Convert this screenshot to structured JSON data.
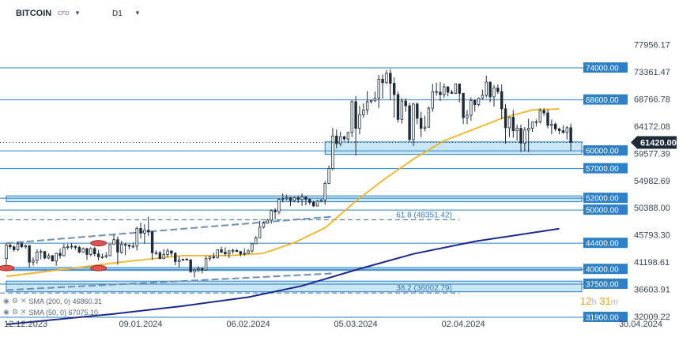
{
  "header": {
    "symbol": "BITCOIN",
    "symbol_sub": "CFD",
    "timeframe": "D1"
  },
  "timer": {
    "hours": "12",
    "h_unit": "h",
    "minutes": "31",
    "m_unit": "m"
  },
  "legend": [
    {
      "text": "SMA (200, 0) 46860.31",
      "color": "#1b2a8a"
    },
    {
      "text": "SMA (50, 0) 67075.10",
      "color": "#f0b429"
    }
  ],
  "colors": {
    "up": "#ffffff",
    "down": "#1f2a37",
    "level_line": "#2e7fc4",
    "zone_fill": "#bfe3f5",
    "sma200": "#1b2a8a",
    "sma50": "#f0b429",
    "price_tag": "#1f2a37",
    "marker": "#e05252"
  },
  "chart_data": {
    "type": "candlestick",
    "instrument": "BITCOIN",
    "timeframe": "D1",
    "ylim": [
      31900,
      80400
    ],
    "y_ticks": [
      77956.17,
      73361.47,
      68766.78,
      64172.08,
      59577.39,
      54982.69,
      50388.0,
      45793.3,
      41198.61,
      36603.91,
      32009.22
    ],
    "y_tick_labels": [
      "77956.17",
      "73361.47",
      "68766.78",
      "64172.08",
      "59577.39",
      "54982.69",
      "50388.00",
      "45793.30",
      "41198.61",
      "36603.91",
      "32009.22"
    ],
    "x_ticks": [
      {
        "date": "2023-12-12",
        "label": "12.12.2023"
      },
      {
        "date": "2024-01-09",
        "label": "09.01.2024"
      },
      {
        "date": "2024-02-06",
        "label": "06.02.2024"
      },
      {
        "date": "2024-03-05",
        "label": "05.03.2024"
      },
      {
        "date": "2024-04-02",
        "label": "02.04.2024"
      },
      {
        "date": "2024-04-30",
        "label": "30.04.2024"
      }
    ],
    "x_start": "2023-12-05",
    "x_end": "2024-05-01",
    "current_price": {
      "value": 61420.0,
      "label": "61420.00"
    },
    "levels": [
      {
        "value": 74000,
        "label": "74000.00"
      },
      {
        "value": 68600,
        "label": "68600.00"
      },
      {
        "value": 60000,
        "label": "60000.00"
      },
      {
        "value": 57000,
        "label": "57000.00"
      },
      {
        "value": 52000,
        "label": "52000.00"
      },
      {
        "value": 50000,
        "label": "50000.00"
      },
      {
        "value": 44400,
        "label": "44400.00"
      },
      {
        "value": 40000,
        "label": "40000.00"
      },
      {
        "value": 37500,
        "label": "37500.00"
      },
      {
        "value": 31900,
        "label": "31900.00"
      }
    ],
    "zones": [
      {
        "from_date": "2024-02-26",
        "to_date": "2024-04-30",
        "low": 59400,
        "high": 61500
      },
      {
        "from_date": "2023-12-05",
        "to_date": "2024-04-30",
        "low": 51400,
        "high": 52400
      },
      {
        "from_date": "2023-12-05",
        "to_date": "2024-04-30",
        "low": 39800,
        "high": 40300
      },
      {
        "from_date": "2023-12-05",
        "to_date": "2024-04-30",
        "low": 36200,
        "high": 38000
      }
    ],
    "fibonacci": [
      {
        "value": 48351.42,
        "label": "61.8 (48351.42)",
        "from_date": "2023-12-05",
        "to_date": "2024-04-01"
      },
      {
        "value": 36002.79,
        "label": "38.2 (36002.79)",
        "from_date": "2023-12-05",
        "to_date": "2024-04-01"
      }
    ],
    "trendlines": [
      {
        "from": [
          "2023-12-05",
          44400
        ],
        "to": [
          "2024-02-28",
          48900
        ],
        "dashed": true
      },
      {
        "from": [
          "2023-12-05",
          36500
        ],
        "to": [
          "2024-02-28",
          39300
        ],
        "dashed": true
      }
    ],
    "markers": [
      {
        "date": "2023-12-29",
        "value": 44400
      },
      {
        "date": "2023-12-29",
        "value": 40200
      },
      {
        "date": "2023-12-05",
        "value": 40200
      }
    ],
    "sma50": [
      [
        "2023-12-05",
        38800
      ],
      [
        "2023-12-20",
        40000
      ],
      [
        "2024-01-05",
        41300
      ],
      [
        "2024-01-20",
        42300
      ],
      [
        "2024-02-01",
        42300
      ],
      [
        "2024-02-10",
        42700
      ],
      [
        "2024-02-18",
        44500
      ],
      [
        "2024-02-26",
        47000
      ],
      [
        "2024-03-05",
        51500
      ],
      [
        "2024-03-12",
        55000
      ],
      [
        "2024-03-20",
        58600
      ],
      [
        "2024-03-28",
        61700
      ],
      [
        "2024-04-05",
        63700
      ],
      [
        "2024-04-12",
        65500
      ],
      [
        "2024-04-20",
        66900
      ],
      [
        "2024-04-27",
        67075
      ]
    ],
    "sma200": [
      [
        "2023-12-05",
        30700
      ],
      [
        "2024-01-01",
        32400
      ],
      [
        "2024-01-20",
        33800
      ],
      [
        "2024-02-06",
        35300
      ],
      [
        "2024-02-20",
        37200
      ],
      [
        "2024-03-05",
        39900
      ],
      [
        "2024-03-20",
        42600
      ],
      [
        "2024-04-05",
        44700
      ],
      [
        "2024-04-27",
        46860
      ]
    ],
    "candles": [
      [
        "2023-12-05",
        41800,
        44400,
        40600,
        44100
      ],
      [
        "2023-12-06",
        44100,
        44300,
        43400,
        43800
      ],
      [
        "2023-12-07",
        43800,
        44000,
        43000,
        43300
      ],
      [
        "2023-12-08",
        43300,
        44600,
        43100,
        44300
      ],
      [
        "2023-12-09",
        44300,
        44500,
        43600,
        43800
      ],
      [
        "2023-12-10",
        43800,
        44200,
        43500,
        44000
      ],
      [
        "2023-12-11",
        44000,
        44000,
        40300,
        41200
      ],
      [
        "2023-12-12",
        41200,
        42000,
        40600,
        41500
      ],
      [
        "2023-12-13",
        41500,
        43400,
        40900,
        42900
      ],
      [
        "2023-12-14",
        42900,
        43400,
        41700,
        43000
      ],
      [
        "2023-12-15",
        43000,
        43100,
        41700,
        41900
      ],
      [
        "2023-12-16",
        41900,
        42700,
        41700,
        42300
      ],
      [
        "2023-12-17",
        42300,
        42400,
        41300,
        41400
      ],
      [
        "2023-12-18",
        41400,
        42800,
        40600,
        42700
      ],
      [
        "2023-12-19",
        42700,
        43500,
        41800,
        42300
      ],
      [
        "2023-12-20",
        42300,
        44300,
        42200,
        43700
      ],
      [
        "2023-12-21",
        43700,
        44300,
        43300,
        43800
      ],
      [
        "2023-12-22",
        43800,
        44400,
        43400,
        43900
      ],
      [
        "2023-12-23",
        43900,
        44000,
        43300,
        43700
      ],
      [
        "2023-12-24",
        43700,
        44000,
        42700,
        42900
      ],
      [
        "2023-12-25",
        42900,
        43700,
        42800,
        43500
      ],
      [
        "2023-12-26",
        43500,
        43600,
        41600,
        42500
      ],
      [
        "2023-12-27",
        42500,
        43700,
        42200,
        43500
      ],
      [
        "2023-12-28",
        43500,
        43800,
        42200,
        42600
      ],
      [
        "2023-12-29",
        42600,
        43300,
        41500,
        42100
      ],
      [
        "2023-12-30",
        42100,
        42600,
        41800,
        42100
      ],
      [
        "2023-12-31",
        42100,
        42900,
        41900,
        42300
      ],
      [
        "2024-01-01",
        42300,
        44200,
        42200,
        44200
      ],
      [
        "2024-01-02",
        44200,
        45900,
        44200,
        45000
      ],
      [
        "2024-01-03",
        45000,
        45500,
        40800,
        42900
      ],
      [
        "2024-01-04",
        42900,
        44800,
        42600,
        44200
      ],
      [
        "2024-01-05",
        44200,
        44500,
        42400,
        44100
      ],
      [
        "2024-01-06",
        44100,
        44200,
        43400,
        43900
      ],
      [
        "2024-01-07",
        43900,
        44500,
        43600,
        43900
      ],
      [
        "2024-01-08",
        43900,
        47200,
        43200,
        46900
      ],
      [
        "2024-01-09",
        46900,
        47900,
        45200,
        46100
      ],
      [
        "2024-01-10",
        46100,
        47600,
        44300,
        46600
      ],
      [
        "2024-01-11",
        46600,
        48900,
        45600,
        46300
      ],
      [
        "2024-01-12",
        46300,
        46500,
        41600,
        42800
      ],
      [
        "2024-01-13",
        42800,
        43200,
        42400,
        42800
      ],
      [
        "2024-01-14",
        42800,
        43100,
        41700,
        41800
      ],
      [
        "2024-01-15",
        41800,
        43400,
        41700,
        42500
      ],
      [
        "2024-01-16",
        42500,
        43500,
        42000,
        43100
      ],
      [
        "2024-01-17",
        43100,
        43200,
        42200,
        42700
      ],
      [
        "2024-01-18",
        42700,
        42900,
        40700,
        41300
      ],
      [
        "2024-01-19",
        41300,
        42200,
        40300,
        41600
      ],
      [
        "2024-01-20",
        41600,
        41800,
        41400,
        41700
      ],
      [
        "2024-01-21",
        41700,
        41900,
        41500,
        41600
      ],
      [
        "2024-01-22",
        41600,
        41700,
        39400,
        39600
      ],
      [
        "2024-01-23",
        39600,
        40100,
        38600,
        39900
      ],
      [
        "2024-01-24",
        39900,
        40500,
        39500,
        40100
      ],
      [
        "2024-01-25",
        40100,
        40300,
        39300,
        39900
      ],
      [
        "2024-01-26",
        39900,
        42200,
        39800,
        41800
      ],
      [
        "2024-01-27",
        41800,
        42200,
        41400,
        42100
      ],
      [
        "2024-01-28",
        42100,
        42800,
        41700,
        42000
      ],
      [
        "2024-01-29",
        42000,
        43300,
        41800,
        43300
      ],
      [
        "2024-01-30",
        43300,
        43800,
        42700,
        42900
      ],
      [
        "2024-01-31",
        42900,
        43700,
        42300,
        42600
      ],
      [
        "2024-02-01",
        42600,
        43300,
        41900,
        43100
      ],
      [
        "2024-02-02",
        43100,
        43500,
        42600,
        43200
      ],
      [
        "2024-02-03",
        43200,
        43400,
        42900,
        43000
      ],
      [
        "2024-02-04",
        43000,
        43100,
        42200,
        42600
      ],
      [
        "2024-02-05",
        42600,
        43500,
        42300,
        42700
      ],
      [
        "2024-02-06",
        42700,
        43400,
        42600,
        43100
      ],
      [
        "2024-02-07",
        43100,
        44400,
        42800,
        44300
      ],
      [
        "2024-02-08",
        44300,
        45600,
        44300,
        45300
      ],
      [
        "2024-02-09",
        45300,
        48200,
        45300,
        47100
      ],
      [
        "2024-02-10",
        47100,
        48100,
        46900,
        47800
      ],
      [
        "2024-02-11",
        47800,
        48500,
        47700,
        48300
      ],
      [
        "2024-02-12",
        48300,
        50100,
        47700,
        49900
      ],
      [
        "2024-02-13",
        49900,
        50300,
        48400,
        49700
      ],
      [
        "2024-02-14",
        49700,
        52000,
        49300,
        51800
      ],
      [
        "2024-02-15",
        51800,
        52800,
        51300,
        51900
      ],
      [
        "2024-02-16",
        51900,
        52600,
        51600,
        52100
      ],
      [
        "2024-02-17",
        52100,
        52200,
        50700,
        51600
      ],
      [
        "2024-02-18",
        51600,
        52300,
        51300,
        52100
      ],
      [
        "2024-02-19",
        52100,
        52400,
        51200,
        51800
      ],
      [
        "2024-02-20",
        51800,
        52800,
        50700,
        52200
      ],
      [
        "2024-02-21",
        52200,
        52300,
        50800,
        51800
      ],
      [
        "2024-02-22",
        51800,
        52000,
        50900,
        51300
      ],
      [
        "2024-02-23",
        51300,
        51600,
        50500,
        50700
      ],
      [
        "2024-02-24",
        50700,
        51700,
        50600,
        51500
      ],
      [
        "2024-02-25",
        51500,
        51900,
        51300,
        51700
      ],
      [
        "2024-02-26",
        51700,
        54900,
        50900,
        54500
      ],
      [
        "2024-02-27",
        54500,
        57500,
        54400,
        57000
      ],
      [
        "2024-02-28",
        57000,
        63900,
        56700,
        62500
      ],
      [
        "2024-02-29",
        62500,
        63600,
        60400,
        61200
      ],
      [
        "2024-03-01",
        61200,
        63200,
        60800,
        62400
      ],
      [
        "2024-03-02",
        62400,
        62500,
        61700,
        62000
      ],
      [
        "2024-03-03",
        62000,
        63200,
        61300,
        63100
      ],
      [
        "2024-03-04",
        63100,
        68500,
        62300,
        68300
      ],
      [
        "2024-03-05",
        68300,
        69200,
        59200,
        63800
      ],
      [
        "2024-03-06",
        63800,
        67600,
        62800,
        66100
      ],
      [
        "2024-03-07",
        66100,
        68000,
        65600,
        66900
      ],
      [
        "2024-03-08",
        66900,
        70100,
        66100,
        68300
      ],
      [
        "2024-03-09",
        68300,
        68600,
        68000,
        68500
      ],
      [
        "2024-03-10",
        68500,
        70000,
        68200,
        68900
      ],
      [
        "2024-03-11",
        68900,
        72800,
        67200,
        72100
      ],
      [
        "2024-03-12",
        72100,
        72900,
        68800,
        71500
      ],
      [
        "2024-03-13",
        71500,
        73600,
        71300,
        73100
      ],
      [
        "2024-03-14",
        73100,
        73800,
        68600,
        71400
      ],
      [
        "2024-03-15",
        71400,
        72400,
        65600,
        69500
      ],
      [
        "2024-03-16",
        69500,
        70000,
        64800,
        65300
      ],
      [
        "2024-03-17",
        65300,
        68900,
        64600,
        68400
      ],
      [
        "2024-03-18",
        68400,
        68900,
        66600,
        67600
      ],
      [
        "2024-03-19",
        67600,
        68100,
        61500,
        61900
      ],
      [
        "2024-03-20",
        61900,
        68100,
        60800,
        67900
      ],
      [
        "2024-03-21",
        67900,
        68200,
        64500,
        65500
      ],
      [
        "2024-03-22",
        65500,
        66600,
        62300,
        63800
      ],
      [
        "2024-03-23",
        63800,
        65900,
        63300,
        64000
      ],
      [
        "2024-03-24",
        64000,
        67500,
        63900,
        67200
      ],
      [
        "2024-03-25",
        67200,
        71300,
        66600,
        70000
      ],
      [
        "2024-03-26",
        70000,
        71500,
        69300,
        69900
      ],
      [
        "2024-03-27",
        69900,
        71600,
        68400,
        69500
      ],
      [
        "2024-03-28",
        69500,
        71400,
        68900,
        70800
      ],
      [
        "2024-03-29",
        70800,
        70900,
        69200,
        69900
      ],
      [
        "2024-03-30",
        69900,
        70300,
        69600,
        69700
      ],
      [
        "2024-03-31",
        69700,
        71300,
        69600,
        71300
      ],
      [
        "2024-04-01",
        71300,
        71300,
        68200,
        69700
      ],
      [
        "2024-04-02",
        69700,
        69700,
        64500,
        65600
      ],
      [
        "2024-04-03",
        65600,
        66900,
        64500,
        66000
      ],
      [
        "2024-04-04",
        66000,
        69000,
        65100,
        68500
      ],
      [
        "2024-04-05",
        68500,
        68700,
        66600,
        67800
      ],
      [
        "2024-04-06",
        67800,
        69000,
        67500,
        68900
      ],
      [
        "2024-04-07",
        68900,
        70300,
        68700,
        69400
      ],
      [
        "2024-04-08",
        69400,
        72700,
        69000,
        71600
      ],
      [
        "2024-04-09",
        71600,
        71700,
        68200,
        69100
      ],
      [
        "2024-04-10",
        69100,
        71100,
        67500,
        70600
      ],
      [
        "2024-04-11",
        70600,
        71200,
        69600,
        70000
      ],
      [
        "2024-04-12",
        70000,
        71200,
        65300,
        67100
      ],
      [
        "2024-04-13",
        67100,
        67900,
        61200,
        63900
      ],
      [
        "2024-04-14",
        63900,
        65800,
        62300,
        65700
      ],
      [
        "2024-04-15",
        65700,
        66900,
        62200,
        63400
      ],
      [
        "2024-04-16",
        63400,
        64400,
        61700,
        63800
      ],
      [
        "2024-04-17",
        63800,
        64400,
        59800,
        61300
      ],
      [
        "2024-04-18",
        61300,
        64000,
        59900,
        63500
      ],
      [
        "2024-04-19",
        63500,
        65400,
        59800,
        63800
      ],
      [
        "2024-04-20",
        63800,
        64900,
        63200,
        64900
      ],
      [
        "2024-04-21",
        64900,
        65300,
        64100,
        64900
      ],
      [
        "2024-04-22",
        64900,
        67200,
        64600,
        66800
      ],
      [
        "2024-04-23",
        66800,
        67200,
        65900,
        66400
      ],
      [
        "2024-04-24",
        66400,
        67000,
        63800,
        64300
      ],
      [
        "2024-04-25",
        64300,
        65300,
        62800,
        64500
      ],
      [
        "2024-04-26",
        64500,
        64800,
        63300,
        63700
      ],
      [
        "2024-04-27",
        63700,
        63900,
        62800,
        63400
      ],
      [
        "2024-04-28",
        63400,
        64300,
        62900,
        63100
      ],
      [
        "2024-04-29",
        63100,
        64200,
        61900,
        63900
      ],
      [
        "2024-04-30",
        63900,
        64600,
        60000,
        61420
      ]
    ]
  }
}
